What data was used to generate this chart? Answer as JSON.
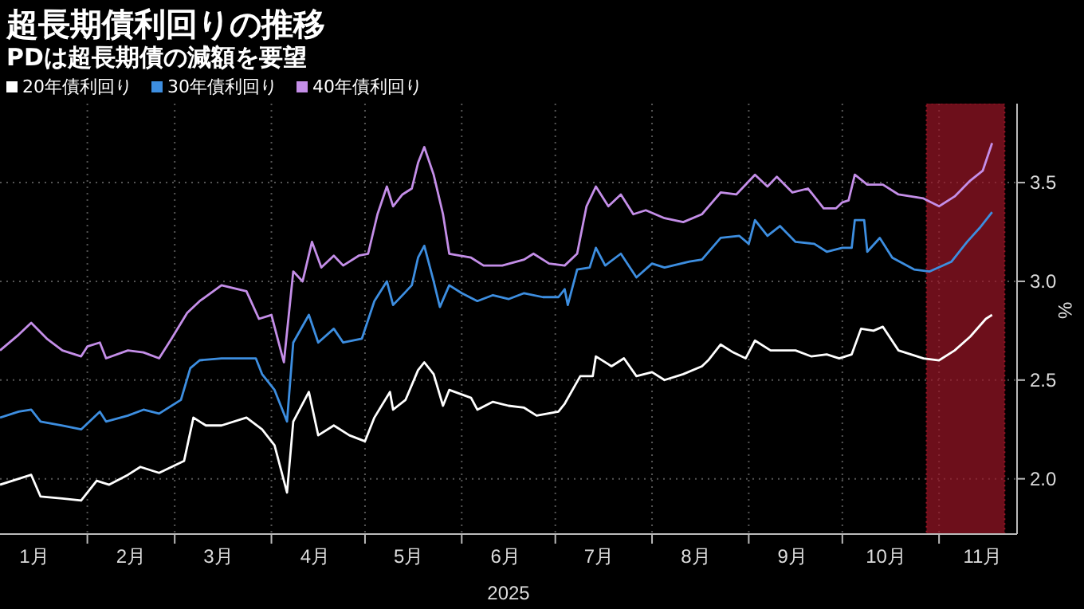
{
  "chart_data": {
    "type": "line",
    "title": "超長期債利回りの推移",
    "subtitle": "PDは超長期債の減額を要望",
    "xlabel": "2025",
    "ylabel": "%",
    "legend": "top left",
    "grid": true,
    "xlim": [
      "2025-01-04",
      "2025-11-26"
    ],
    "xticks": [
      {
        "value": "2025-01-15",
        "label": "1月"
      },
      {
        "value": "2025-02-01",
        "label": null
      },
      {
        "value": "2025-02-15",
        "label": "2月"
      },
      {
        "value": "2025-03-01",
        "label": null
      },
      {
        "value": "2025-03-15",
        "label": "3月"
      },
      {
        "value": "2025-04-01",
        "label": null
      },
      {
        "value": "2025-04-15",
        "label": "4月"
      },
      {
        "value": "2025-05-01",
        "label": null
      },
      {
        "value": "2025-05-15",
        "label": "5月"
      },
      {
        "value": "2025-06-01",
        "label": null
      },
      {
        "value": "2025-06-15",
        "label": "6月"
      },
      {
        "value": "2025-07-01",
        "label": null
      },
      {
        "value": "2025-07-15",
        "label": "7月"
      },
      {
        "value": "2025-08-01",
        "label": null
      },
      {
        "value": "2025-08-15",
        "label": "8月"
      },
      {
        "value": "2025-09-01",
        "label": null
      },
      {
        "value": "2025-09-15",
        "label": "9月"
      },
      {
        "value": "2025-10-01",
        "label": null
      },
      {
        "value": "2025-10-15",
        "label": "10月"
      },
      {
        "value": "2025-11-01",
        "label": null
      },
      {
        "value": "2025-11-15",
        "label": "11月"
      }
    ],
    "ylim": [
      1.72,
      3.9
    ],
    "yticks": [
      {
        "value": 2,
        "label": "2.0"
      },
      {
        "value": 2.5,
        "label": "2.5"
      },
      {
        "value": 3,
        "label": "3.0"
      },
      {
        "value": 3.5,
        "label": "3.5"
      }
    ],
    "bands": [
      {
        "axis": "x",
        "from": "2025-10-28",
        "to": "2025-11-22",
        "color": "#9b1526"
      }
    ],
    "series": [
      {
        "name": "20年債利回り",
        "color": "#ffffff",
        "x": [
          "2025-01-04",
          "2025-01-14",
          "2025-01-17",
          "2025-01-24",
          "2025-01-30",
          "2025-02-04",
          "2025-02-08",
          "2025-02-14",
          "2025-02-18",
          "2025-02-24",
          "2025-03-04",
          "2025-03-07",
          "2025-03-11",
          "2025-03-16",
          "2025-03-24",
          "2025-03-29",
          "2025-04-02",
          "2025-04-06",
          "2025-04-08",
          "2025-04-13",
          "2025-04-16",
          "2025-04-21",
          "2025-04-26",
          "2025-05-01",
          "2025-05-04",
          "2025-05-09",
          "2025-05-10",
          "2025-05-14",
          "2025-05-18",
          "2025-05-20",
          "2025-05-23",
          "2025-05-26",
          "2025-05-28",
          "2025-06-04",
          "2025-06-06",
          "2025-06-11",
          "2025-06-16",
          "2025-06-21",
          "2025-06-25",
          "2025-07-02",
          "2025-07-04",
          "2025-07-09",
          "2025-07-13",
          "2025-07-14",
          "2025-07-19",
          "2025-07-23",
          "2025-07-27",
          "2025-08-01",
          "2025-08-05",
          "2025-08-11",
          "2025-08-17",
          "2025-08-19",
          "2025-08-23",
          "2025-08-27",
          "2025-08-31",
          "2025-09-03",
          "2025-09-08",
          "2025-09-16",
          "2025-09-21",
          "2025-09-26",
          "2025-09-30",
          "2025-10-04",
          "2025-10-07",
          "2025-10-11",
          "2025-10-14",
          "2025-10-19",
          "2025-10-27",
          "2025-11-01",
          "2025-11-06",
          "2025-11-11",
          "2025-11-16",
          "2025-11-18"
        ],
        "values": [
          1.97,
          2.02,
          1.91,
          1.9,
          1.89,
          1.99,
          1.97,
          2.02,
          2.06,
          2.03,
          2.09,
          2.31,
          2.27,
          2.27,
          2.31,
          2.25,
          2.17,
          1.93,
          2.29,
          2.44,
          2.22,
          2.27,
          2.22,
          2.19,
          2.31,
          2.44,
          2.35,
          2.4,
          2.55,
          2.59,
          2.53,
          2.37,
          2.45,
          2.41,
          2.35,
          2.39,
          2.37,
          2.36,
          2.32,
          2.34,
          2.38,
          2.52,
          2.52,
          2.62,
          2.57,
          2.61,
          2.52,
          2.54,
          2.5,
          2.53,
          2.57,
          2.6,
          2.68,
          2.64,
          2.61,
          2.7,
          2.65,
          2.65,
          2.62,
          2.63,
          2.61,
          2.63,
          2.76,
          2.75,
          2.77,
          2.65,
          2.61,
          2.6,
          2.65,
          2.72,
          2.81,
          2.83
        ]
      },
      {
        "name": "30年債利回り",
        "color": "#3d8ee0",
        "x": [
          "2025-01-04",
          "2025-01-10",
          "2025-01-14",
          "2025-01-17",
          "2025-01-24",
          "2025-01-30",
          "2025-02-05",
          "2025-02-07",
          "2025-02-14",
          "2025-02-19",
          "2025-02-24",
          "2025-03-03",
          "2025-03-06",
          "2025-03-09",
          "2025-03-16",
          "2025-03-27",
          "2025-03-29",
          "2025-04-02",
          "2025-04-06",
          "2025-04-08",
          "2025-04-13",
          "2025-04-16",
          "2025-04-21",
          "2025-04-24",
          "2025-04-30",
          "2025-05-04",
          "2025-05-08",
          "2025-05-10",
          "2025-05-16",
          "2025-05-18",
          "2025-05-20",
          "2025-05-23",
          "2025-05-25",
          "2025-05-28",
          "2025-06-01",
          "2025-06-06",
          "2025-06-11",
          "2025-06-16",
          "2025-06-21",
          "2025-06-27",
          "2025-07-02",
          "2025-07-04",
          "2025-07-05",
          "2025-07-08",
          "2025-07-12",
          "2025-07-14",
          "2025-07-17",
          "2025-07-22",
          "2025-07-27",
          "2025-08-01",
          "2025-08-05",
          "2025-08-13",
          "2025-08-17",
          "2025-08-23",
          "2025-08-29",
          "2025-09-01",
          "2025-09-03",
          "2025-09-07",
          "2025-09-11",
          "2025-09-16",
          "2025-09-22",
          "2025-09-26",
          "2025-10-01",
          "2025-10-04",
          "2025-10-05",
          "2025-10-08",
          "2025-10-09",
          "2025-10-13",
          "2025-10-17",
          "2025-10-24",
          "2025-10-29",
          "2025-11-05",
          "2025-11-10",
          "2025-11-14",
          "2025-11-18"
        ],
        "values": [
          2.31,
          2.34,
          2.35,
          2.29,
          2.27,
          2.25,
          2.34,
          2.29,
          2.32,
          2.35,
          2.33,
          2.4,
          2.56,
          2.6,
          2.61,
          2.61,
          2.53,
          2.45,
          2.29,
          2.69,
          2.83,
          2.69,
          2.76,
          2.69,
          2.71,
          2.9,
          3.0,
          2.88,
          2.98,
          3.12,
          3.18,
          3.0,
          2.87,
          2.98,
          2.94,
          2.9,
          2.93,
          2.91,
          2.94,
          2.92,
          2.92,
          2.96,
          2.88,
          3.06,
          3.07,
          3.17,
          3.08,
          3.14,
          3.02,
          3.09,
          3.07,
          3.1,
          3.11,
          3.22,
          3.23,
          3.19,
          3.31,
          3.23,
          3.28,
          3.2,
          3.19,
          3.15,
          3.17,
          3.17,
          3.31,
          3.31,
          3.15,
          3.22,
          3.12,
          3.06,
          3.05,
          3.1,
          3.2,
          3.27,
          3.35
        ]
      },
      {
        "name": "40年債利回り",
        "color": "#c48ee8",
        "x": [
          "2025-01-04",
          "2025-01-10",
          "2025-01-14",
          "2025-01-19",
          "2025-01-24",
          "2025-01-30",
          "2025-02-01",
          "2025-02-05",
          "2025-02-07",
          "2025-02-14",
          "2025-02-19",
          "2025-02-24",
          "2025-02-28",
          "2025-03-05",
          "2025-03-09",
          "2025-03-16",
          "2025-03-24",
          "2025-03-28",
          "2025-04-01",
          "2025-04-03",
          "2025-04-05",
          "2025-04-08",
          "2025-04-11",
          "2025-04-14",
          "2025-04-17",
          "2025-04-21",
          "2025-04-24",
          "2025-04-29",
          "2025-05-02",
          "2025-05-05",
          "2025-05-08",
          "2025-05-10",
          "2025-05-13",
          "2025-05-16",
          "2025-05-18",
          "2025-05-20",
          "2025-05-23",
          "2025-05-26",
          "2025-05-28",
          "2025-06-04",
          "2025-06-08",
          "2025-06-14",
          "2025-06-21",
          "2025-06-24",
          "2025-06-29",
          "2025-07-04",
          "2025-07-08",
          "2025-07-11",
          "2025-07-14",
          "2025-07-18",
          "2025-07-22",
          "2025-07-26",
          "2025-07-30",
          "2025-08-05",
          "2025-08-11",
          "2025-08-17",
          "2025-08-23",
          "2025-08-28",
          "2025-09-03",
          "2025-09-07",
          "2025-09-10",
          "2025-09-15",
          "2025-09-20",
          "2025-09-25",
          "2025-09-29",
          "2025-10-01",
          "2025-10-03",
          "2025-10-05",
          "2025-10-09",
          "2025-10-14",
          "2025-10-19",
          "2025-10-27",
          "2025-11-01",
          "2025-11-06",
          "2025-11-11",
          "2025-11-15",
          "2025-11-18"
        ],
        "values": [
          2.65,
          2.73,
          2.79,
          2.71,
          2.65,
          2.62,
          2.67,
          2.69,
          2.61,
          2.65,
          2.64,
          2.61,
          2.71,
          2.84,
          2.9,
          2.98,
          2.95,
          2.81,
          2.83,
          2.71,
          2.59,
          3.05,
          3.0,
          3.2,
          3.07,
          3.13,
          3.08,
          3.13,
          3.14,
          3.34,
          3.48,
          3.38,
          3.44,
          3.47,
          3.6,
          3.68,
          3.54,
          3.34,
          3.14,
          3.12,
          3.08,
          3.08,
          3.11,
          3.14,
          3.09,
          3.08,
          3.14,
          3.38,
          3.48,
          3.38,
          3.44,
          3.34,
          3.36,
          3.32,
          3.3,
          3.34,
          3.45,
          3.44,
          3.54,
          3.48,
          3.53,
          3.45,
          3.47,
          3.37,
          3.37,
          3.4,
          3.41,
          3.54,
          3.49,
          3.49,
          3.44,
          3.42,
          3.38,
          3.43,
          3.51,
          3.56,
          3.7
        ]
      }
    ]
  }
}
